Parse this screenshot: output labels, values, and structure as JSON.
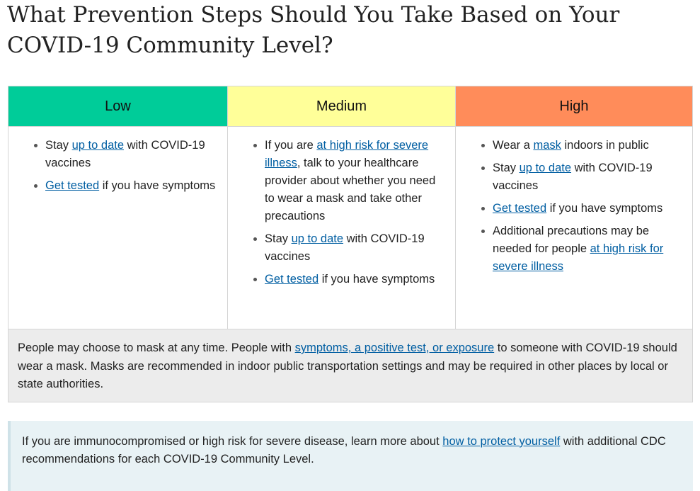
{
  "title": "What Prevention Steps Should You Take Based on Your COVID-19 Community Level?",
  "colors": {
    "low": "#00cc99",
    "medium": "#ffff99",
    "high": "#ff8c5a",
    "link": "#005ea2"
  },
  "levels": {
    "low": {
      "heading": "Low",
      "items": [
        {
          "pre": "Stay ",
          "link": "up to date",
          "post": " with COVID-19 vaccines"
        },
        {
          "pre": "",
          "link": "Get tested",
          "post": " if you have symptoms"
        }
      ]
    },
    "medium": {
      "heading": "Medium",
      "items": [
        {
          "pre": "If you are ",
          "link": "at high risk for severe illness",
          "post": ", talk to your healthcare provider about whether you need to wear a mask and take other precautions"
        },
        {
          "pre": "Stay ",
          "link": "up to date",
          "post": " with COVID-19 vaccines"
        },
        {
          "pre": "",
          "link": "Get tested",
          "post": " if you have symptoms"
        }
      ]
    },
    "high": {
      "heading": "High",
      "items": [
        {
          "pre": "Wear a ",
          "link": "mask",
          "post": " indoors in public"
        },
        {
          "pre": "Stay ",
          "link": "up to date",
          "post": " with COVID-19 vaccines"
        },
        {
          "pre": "",
          "link": "Get tested",
          "post": " if you have symptoms"
        },
        {
          "pre": "Additional precautions may be needed for people ",
          "link": "at high risk for severe illness",
          "post": ""
        }
      ]
    }
  },
  "footer": {
    "pre": "People may choose to mask at any time. People with ",
    "link": "symptoms, a positive test, or exposure",
    "post": " to someone with COVID-19 should wear a mask. Masks are recommended in indoor public transportation settings and may be required in other places by local or state authorities."
  },
  "callout": {
    "pre": "If you are immunocompromised or high risk for severe disease, learn more about ",
    "link": "how to protect yourself",
    "post": " with additional CDC recommendations for each COVID-19 Community Level."
  }
}
